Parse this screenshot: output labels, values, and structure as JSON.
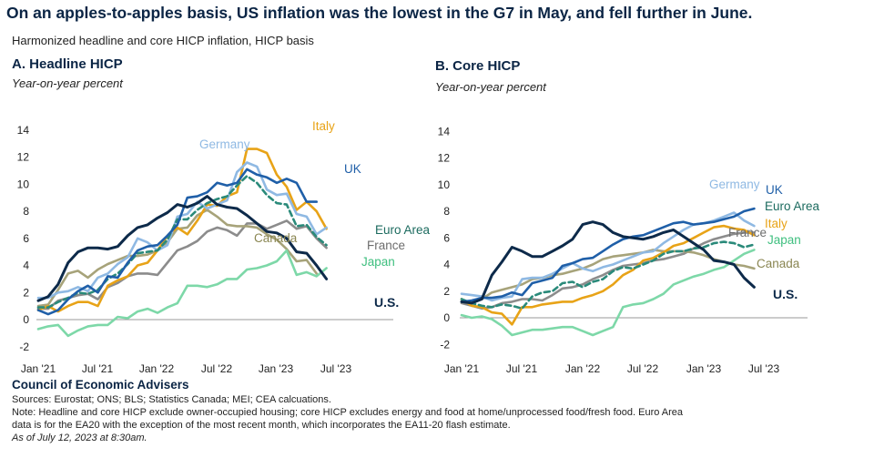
{
  "title": "On an apples-to-apples basis, US inflation was the lowest in the G7 in May, and fell further in June.",
  "subtitle": "Harmonized headline and core HICP inflation, HICP basis",
  "footer": {
    "org": "Council of Economic Advisers",
    "sources": "Sources: Eurostat; ONS; BLS; Statistics Canada; MEI; CEA calcuations.",
    "note1": "Note: Headline and core HICP exclude owner-occupied housing; core HICP excludes energy and food at home/unprocessed food/fresh food. Euro Area",
    "note2": "data is for the EA20 with the exception of the most recent month, which incorporates the EA11-20 flash estimate.",
    "asof": "As of July 12, 2023 at 8:30am."
  },
  "colors": {
    "US": "#0d2a4a",
    "UK": "#1f5fa8",
    "Germany": "#8fb9e3",
    "Italy": "#e8a317",
    "Euro Area": "#2a8a7a",
    "France": "#8c8c8c",
    "Canada": "#a7a37a",
    "Japan": "#7dd8a8"
  },
  "chart_data": [
    {
      "type": "line",
      "title": "A. Headline HICP",
      "ylabel": "Year-on-year percent",
      "ylim": [
        -2,
        14
      ],
      "yticks": [
        "-2",
        "0",
        "2",
        "4",
        "6",
        "8",
        "10",
        "12",
        "14"
      ],
      "xticks": [
        "Jan '21",
        "Jul '21",
        "Jan '22",
        "Jul '22",
        "Jan '23",
        "Jul '23"
      ],
      "x_start": "2021-01",
      "series": [
        {
          "name": "U.S.",
          "values": [
            1.4,
            1.7,
            2.6,
            4.2,
            5.0,
            5.3,
            5.3,
            5.2,
            5.4,
            6.2,
            6.8,
            7.0,
            7.5,
            7.9,
            8.5,
            8.3,
            8.6,
            9.1,
            8.5,
            8.3,
            8.2,
            7.7,
            7.1,
            6.5,
            6.4,
            6.0,
            5.0,
            4.9,
            4.0,
            3.0
          ]
        },
        {
          "name": "UK",
          "values": [
            0.7,
            0.4,
            0.7,
            1.5,
            2.1,
            2.5,
            2.0,
            3.2,
            3.1,
            4.2,
            5.1,
            5.4,
            5.5,
            6.2,
            7.0,
            9.0,
            9.1,
            9.4,
            10.1,
            9.9,
            10.1,
            11.1,
            10.7,
            10.5,
            10.1,
            10.4,
            10.1,
            8.7,
            8.7
          ]
        },
        {
          "name": "Germany",
          "values": [
            1.6,
            1.6,
            2.0,
            2.1,
            2.4,
            2.1,
            3.1,
            3.4,
            4.1,
            4.6,
            6.0,
            5.7,
            5.1,
            5.5,
            7.6,
            7.8,
            8.7,
            8.2,
            8.5,
            8.8,
            10.9,
            11.6,
            11.3,
            9.6,
            9.2,
            9.3,
            7.8,
            7.6,
            6.3,
            6.8
          ]
        },
        {
          "name": "Italy",
          "values": [
            0.7,
            1.0,
            0.6,
            1.0,
            1.3,
            1.3,
            1.0,
            2.5,
            2.9,
            3.2,
            4.0,
            4.2,
            5.1,
            6.2,
            6.8,
            6.3,
            7.3,
            8.5,
            8.4,
            9.1,
            9.4,
            12.6,
            12.6,
            12.3,
            10.7,
            9.8,
            8.1,
            8.7,
            8.0,
            6.7
          ]
        },
        {
          "name": "Euro Area",
          "values": [
            0.9,
            0.9,
            1.3,
            1.6,
            2.0,
            1.9,
            2.2,
            3.0,
            3.4,
            4.1,
            4.9,
            5.0,
            5.1,
            5.9,
            7.4,
            7.4,
            8.1,
            8.6,
            8.9,
            9.1,
            9.9,
            10.6,
            10.1,
            9.2,
            8.6,
            8.5,
            6.9,
            7.0,
            6.1,
            5.5
          ]
        },
        {
          "name": "France",
          "values": [
            0.8,
            0.8,
            1.4,
            1.6,
            1.8,
            1.9,
            1.5,
            2.4,
            2.7,
            3.2,
            3.4,
            3.4,
            3.3,
            4.2,
            5.1,
            5.4,
            5.8,
            6.5,
            6.8,
            6.6,
            6.2,
            7.1,
            7.1,
            6.7,
            7.0,
            7.3,
            6.7,
            6.9,
            6.0,
            5.3
          ]
        },
        {
          "name": "Canada",
          "values": [
            1.0,
            1.1,
            2.2,
            3.4,
            3.6,
            3.1,
            3.7,
            4.1,
            4.4,
            4.7,
            4.7,
            4.8,
            5.1,
            5.7,
            6.7,
            6.8,
            7.7,
            8.1,
            7.6,
            7.0,
            6.9,
            6.9,
            6.8,
            6.3,
            5.9,
            5.2,
            4.3,
            4.4,
            3.4
          ]
        },
        {
          "name": "Japan",
          "values": [
            -0.7,
            -0.5,
            -0.4,
            -1.2,
            -0.8,
            -0.5,
            -0.4,
            -0.4,
            0.2,
            0.1,
            0.6,
            0.8,
            0.5,
            0.9,
            1.2,
            2.5,
            2.5,
            2.4,
            2.6,
            3.0,
            3.0,
            3.7,
            3.8,
            4.0,
            4.3,
            5.1,
            3.3,
            3.5,
            3.2,
            3.8
          ]
        }
      ]
    },
    {
      "type": "line",
      "title": "B. Core HICP",
      "ylabel": "Year-on-year percent",
      "ylim": [
        -2,
        14
      ],
      "yticks": [
        "-2",
        "0",
        "2",
        "4",
        "6",
        "8",
        "10",
        "12",
        "14"
      ],
      "xticks": [
        "Jan '21",
        "Jul '21",
        "Jan '22",
        "Jul '22",
        "Jan '23",
        "Jul '23"
      ],
      "x_start": "2021-01",
      "series": [
        {
          "name": "U.S.",
          "values": [
            1.2,
            1.1,
            1.4,
            3.2,
            4.2,
            5.3,
            5.0,
            4.6,
            4.6,
            5.0,
            5.4,
            5.9,
            7.0,
            7.2,
            7.0,
            6.4,
            6.1,
            6.0,
            5.9,
            6.1,
            6.4,
            6.6,
            6.1,
            5.6,
            5.1,
            4.3,
            4.2,
            4.0,
            3.0,
            2.3
          ]
        },
        {
          "name": "UK",
          "values": [
            1.2,
            1.3,
            1.5,
            1.5,
            1.6,
            1.9,
            1.7,
            2.6,
            2.8,
            3.0,
            3.9,
            4.1,
            4.4,
            4.5,
            5.0,
            5.5,
            5.9,
            6.1,
            6.2,
            6.5,
            6.8,
            7.1,
            7.2,
            7.0,
            7.1,
            7.2,
            7.4,
            7.6,
            8.0,
            8.2
          ]
        },
        {
          "name": "Germany",
          "values": [
            1.8,
            1.7,
            1.6,
            1.3,
            1.5,
            1.6,
            2.9,
            3.0,
            3.0,
            3.3,
            3.7,
            4.1,
            3.7,
            3.5,
            3.8,
            4.0,
            4.3,
            4.6,
            4.9,
            5.0,
            5.6,
            6.1,
            6.6,
            7.0,
            7.1,
            7.3,
            7.6,
            7.9,
            7.3,
            6.9
          ]
        },
        {
          "name": "Italy",
          "values": [
            1.4,
            0.9,
            0.8,
            0.4,
            0.3,
            -0.5,
            0.8,
            0.8,
            1.0,
            1.1,
            1.2,
            1.2,
            1.5,
            1.7,
            2.0,
            2.5,
            3.2,
            3.6,
            4.3,
            4.5,
            4.9,
            5.4,
            5.6,
            6.0,
            6.4,
            6.8,
            6.9,
            6.7,
            6.6,
            6.2
          ]
        },
        {
          "name": "Euro Area",
          "values": [
            1.4,
            1.1,
            0.9,
            0.8,
            1.0,
            0.9,
            0.7,
            1.6,
            1.9,
            2.0,
            2.6,
            2.7,
            2.3,
            2.7,
            2.9,
            3.5,
            3.8,
            3.7,
            4.0,
            4.3,
            4.8,
            5.0,
            5.0,
            5.2,
            5.3,
            5.6,
            5.7,
            5.6,
            5.3,
            5.5
          ]
        },
        {
          "name": "France",
          "values": [
            1.1,
            0.9,
            0.7,
            0.8,
            1.1,
            1.2,
            1.4,
            1.4,
            1.3,
            1.7,
            2.2,
            2.3,
            2.5,
            2.9,
            3.2,
            3.6,
            3.9,
            4.0,
            4.1,
            4.3,
            4.4,
            4.6,
            4.8,
            5.2,
            5.6,
            5.9,
            6.1,
            6.3,
            6.4,
            6.4
          ]
        },
        {
          "name": "Canada",
          "values": [
            1.2,
            1.2,
            1.4,
            1.9,
            2.1,
            2.3,
            2.5,
            2.9,
            3.0,
            3.2,
            3.3,
            3.5,
            3.7,
            4.0,
            4.4,
            4.6,
            4.7,
            4.8,
            4.9,
            5.1,
            5.0,
            5.0,
            5.0,
            4.9,
            4.7,
            4.4,
            4.2,
            4.0,
            3.9,
            3.7
          ]
        },
        {
          "name": "Japan",
          "values": [
            0.2,
            0.0,
            0.1,
            -0.1,
            -0.6,
            -1.3,
            -1.1,
            -0.9,
            -0.9,
            -0.8,
            -0.7,
            -0.7,
            -1.0,
            -1.3,
            -1.0,
            -0.7,
            0.8,
            1.0,
            1.1,
            1.4,
            1.8,
            2.5,
            2.8,
            3.1,
            3.3,
            3.6,
            3.8,
            4.3,
            4.8,
            5.1
          ]
        }
      ]
    }
  ],
  "panels": [
    {
      "labels": [
        {
          "text": "Italy",
          "series": "Italy"
        },
        {
          "text": "Germany",
          "series": "Germany"
        },
        {
          "text": "UK",
          "series": "UK"
        },
        {
          "text": "Euro Area",
          "series": "Euro Area"
        },
        {
          "text": "France",
          "series": "France"
        },
        {
          "text": "Canada",
          "series": "Canada"
        },
        {
          "text": "Japan",
          "series": "Japan"
        },
        {
          "text": "U.S.",
          "series": "U.S."
        }
      ]
    },
    {
      "labels": [
        {
          "text": "Germany",
          "series": "Germany"
        },
        {
          "text": "UK",
          "series": "UK"
        },
        {
          "text": "Euro Area",
          "series": "Euro Area"
        },
        {
          "text": "Italy",
          "series": "Italy"
        },
        {
          "text": "France",
          "series": "France"
        },
        {
          "text": "Japan",
          "series": "Japan"
        },
        {
          "text": "Canada",
          "series": "Canada"
        },
        {
          "text": "U.S.",
          "series": "U.S."
        }
      ]
    }
  ]
}
